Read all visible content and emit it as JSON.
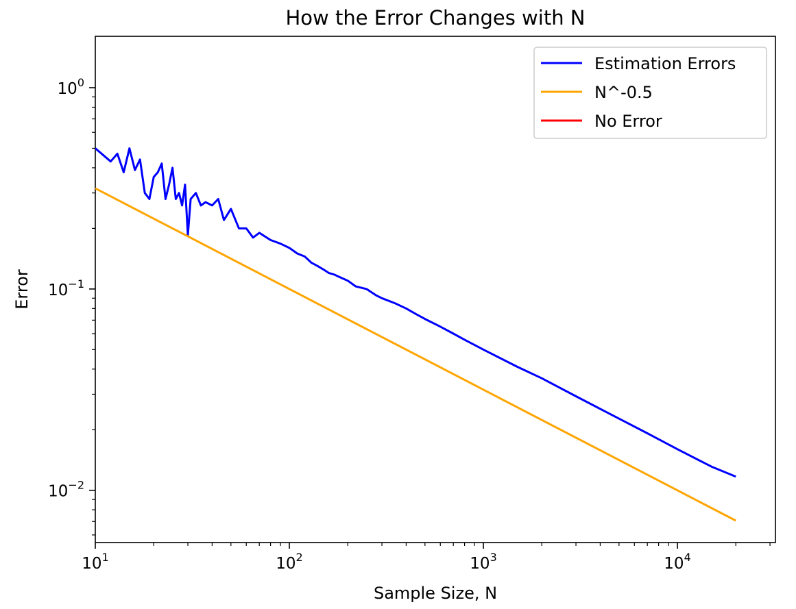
{
  "chart_data": {
    "type": "line",
    "title": "How the Error Changes with N",
    "xlabel": "Sample Size, N",
    "ylabel": "Error",
    "xscale": "log",
    "yscale": "log",
    "xlim": [
      10,
      32000
    ],
    "ylim": [
      0.0055,
      1.8
    ],
    "grid": false,
    "legend_position": "top-right",
    "x_ticks": [
      {
        "value": 10,
        "base": "10",
        "exp": "1"
      },
      {
        "value": 100,
        "base": "10",
        "exp": "2"
      },
      {
        "value": 1000,
        "base": "10",
        "exp": "3"
      },
      {
        "value": 10000,
        "base": "10",
        "exp": "4"
      }
    ],
    "y_ticks": [
      {
        "value": 1,
        "base": "10",
        "exp": "0"
      },
      {
        "value": 0.1,
        "base": "10",
        "exp": "−1"
      },
      {
        "value": 0.01,
        "base": "10",
        "exp": "−2"
      }
    ],
    "series": [
      {
        "name": "Estimation Errors",
        "color": "#0000ff",
        "x": [
          10,
          12,
          13,
          14,
          15,
          16,
          17,
          18,
          19,
          20,
          21,
          22,
          23,
          24,
          25,
          26,
          27,
          28,
          29,
          30,
          31,
          33,
          35,
          37,
          40,
          43,
          46,
          50,
          55,
          60,
          65,
          70,
          80,
          90,
          100,
          110,
          120,
          130,
          140,
          150,
          160,
          170,
          180,
          200,
          220,
          250,
          280,
          300,
          350,
          400,
          450,
          500,
          600,
          700,
          800,
          1000,
          1500,
          2000,
          3000,
          5000,
          7000,
          10000,
          15000,
          20000
        ],
        "y": [
          0.5,
          0.43,
          0.47,
          0.38,
          0.5,
          0.39,
          0.44,
          0.3,
          0.28,
          0.36,
          0.38,
          0.42,
          0.28,
          0.33,
          0.4,
          0.28,
          0.3,
          0.26,
          0.33,
          0.185,
          0.28,
          0.3,
          0.26,
          0.27,
          0.26,
          0.28,
          0.22,
          0.25,
          0.2,
          0.2,
          0.18,
          0.19,
          0.175,
          0.168,
          0.16,
          0.15,
          0.145,
          0.135,
          0.13,
          0.125,
          0.12,
          0.118,
          0.115,
          0.11,
          0.103,
          0.1,
          0.093,
          0.09,
          0.085,
          0.08,
          0.075,
          0.071,
          0.065,
          0.06,
          0.056,
          0.05,
          0.041,
          0.036,
          0.0293,
          0.0227,
          0.0192,
          0.016,
          0.0131,
          0.0117
        ]
      },
      {
        "name": "N^-0.5",
        "color": "#ffa500",
        "x": [
          10,
          20000
        ],
        "y": [
          0.3162,
          0.00707
        ]
      },
      {
        "name": "No Error",
        "color": "#ff0000",
        "x": [],
        "y": []
      }
    ]
  }
}
